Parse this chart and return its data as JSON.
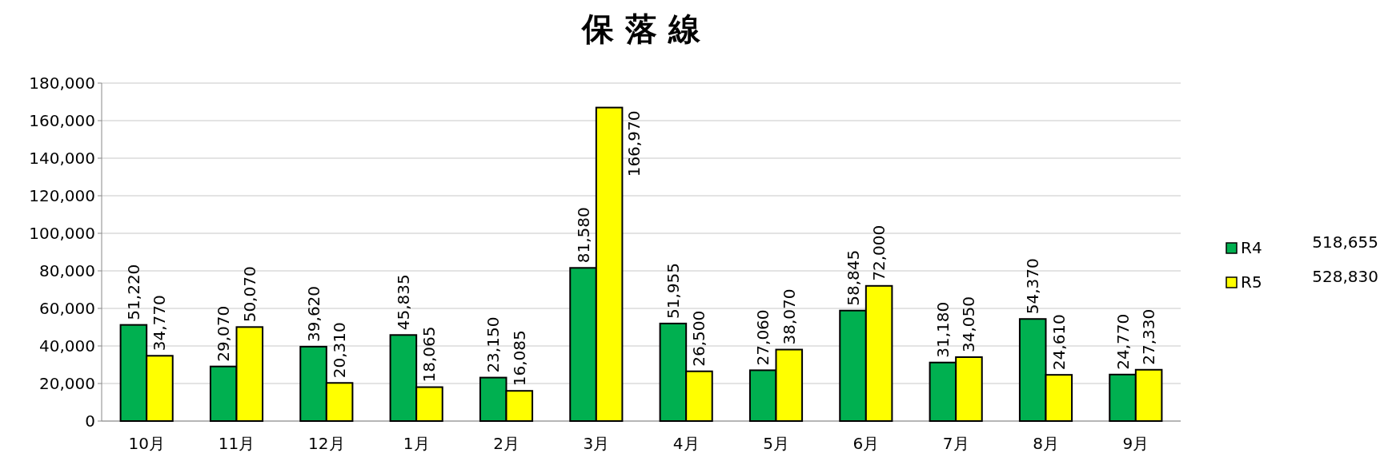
{
  "chart_data": {
    "type": "bar",
    "title": "保 落 線",
    "categories": [
      "10月",
      "11月",
      "12月",
      "1月",
      "2月",
      "3月",
      "4月",
      "5月",
      "6月",
      "7月",
      "8月",
      "9月"
    ],
    "series": [
      {
        "name": "R4",
        "color": "#00b050",
        "values": [
          51220,
          29070,
          39620,
          45835,
          23150,
          81580,
          51955,
          27060,
          58845,
          31180,
          54370,
          24770
        ],
        "value_labels": [
          "51,220",
          "29,070",
          "39,620",
          "45,835",
          "23,150",
          "81,580",
          "51,955",
          "27,060",
          "58,845",
          "31,180",
          "54,370",
          "24,770"
        ]
      },
      {
        "name": "R5",
        "color": "#ffff00",
        "values": [
          34770,
          50070,
          20310,
          18065,
          16085,
          166970,
          26500,
          38070,
          72000,
          34050,
          24610,
          27330
        ],
        "value_labels": [
          "34,770",
          "50,070",
          "20,310",
          "18,065",
          "16,085",
          "166,970",
          "26,500",
          "38,070",
          "72,000",
          "34,050",
          "24,610",
          "27,330"
        ]
      }
    ],
    "annotations": [
      "518,655",
      "528,830"
    ],
    "ylim": [
      0,
      180000
    ],
    "yticks": [
      {
        "value": 0,
        "label": "0"
      },
      {
        "value": 20000,
        "label": "20,000"
      },
      {
        "value": 40000,
        "label": "40,000"
      },
      {
        "value": 60000,
        "label": "60,000"
      },
      {
        "value": 80000,
        "label": "80,000"
      },
      {
        "value": 100000,
        "label": "100,000"
      },
      {
        "value": 120000,
        "label": "120,000"
      },
      {
        "value": 140000,
        "label": "140,000"
      },
      {
        "value": 160000,
        "label": "160,000"
      },
      {
        "value": 180000,
        "label": "180,000"
      }
    ],
    "grid": "y",
    "legend": "right"
  }
}
